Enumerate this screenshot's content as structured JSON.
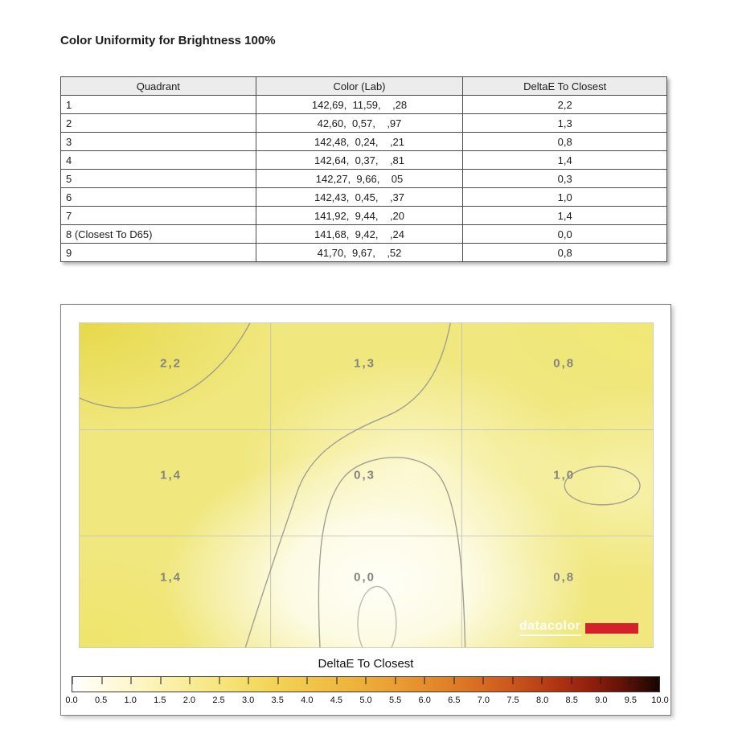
{
  "page": {
    "title": "Color Uniformity for Brightness 100%"
  },
  "table": {
    "headers": [
      "Quadrant",
      "Color (Lab)",
      "DeltaE To Closest"
    ],
    "rows": [
      {
        "quadrant": "1",
        "color_lab": "142,69,  11,59,    ,28",
        "delta_e": "2,2"
      },
      {
        "quadrant": "2",
        "color_lab": "42,60,  0,57,    ,97",
        "delta_e": "1,3"
      },
      {
        "quadrant": "3",
        "color_lab": "142,48,  0,24,    ,21",
        "delta_e": "0,8"
      },
      {
        "quadrant": "4",
        "color_lab": "142,64,  0,37,    ,81",
        "delta_e": "1,4"
      },
      {
        "quadrant": "5",
        "color_lab": "142,27,  9,66,    05",
        "delta_e": "0,3"
      },
      {
        "quadrant": "6",
        "color_lab": "142,43,  0,45,    ,37",
        "delta_e": "1,0"
      },
      {
        "quadrant": "7",
        "color_lab": "141,92,  9,44,    ,20",
        "delta_e": "1,4"
      },
      {
        "quadrant": "8 (Closest To D65)",
        "color_lab": "141,68,  9,42,    ,24",
        "delta_e": "0,0"
      },
      {
        "quadrant": "9",
        "color_lab": "41,70,  9,67,    ,52",
        "delta_e": "0,8"
      }
    ]
  },
  "chart_data": {
    "type": "heatmap",
    "title": "DeltaE To Closest",
    "grid_rows": 3,
    "grid_cols": 3,
    "values": [
      [
        2.2,
        1.3,
        0.8
      ],
      [
        1.4,
        0.3,
        1.0
      ],
      [
        1.4,
        0.0,
        0.8
      ]
    ],
    "cell_labels": [
      [
        "2,2",
        "1,3",
        "0,8"
      ],
      [
        "1,4",
        "0,3",
        "1,0"
      ],
      [
        "1,4",
        "0,0",
        "0,8"
      ]
    ],
    "colorbar": {
      "label": "DeltaE To Closest",
      "min": 0,
      "max": 10,
      "tick_labels": [
        "0.0",
        "0.5",
        "1.0",
        "1.5",
        "2.0",
        "2.5",
        "3.0",
        "3.5",
        "4.0",
        "4.5",
        "5.0",
        "5.5",
        "6.0",
        "6.5",
        "7.0",
        "7.5",
        "8.0",
        "8.5",
        "9.0",
        "9.5",
        "10.0"
      ],
      "gradient": [
        "#ffffff 0%",
        "#fffbe4 5%",
        "#fcf5c0 12%",
        "#f9ec96 20%",
        "#f6e070 28%",
        "#f3d254 35%",
        "#f0c246 42%",
        "#edb03a 49%",
        "#e99b31 56%",
        "#e18429 63%",
        "#d66a21 70%",
        "#c54d1a 77%",
        "#ad3212 83%",
        "#8c1d0c 89%",
        "#5e1207 94%",
        "#2e0a04 98%",
        "#140502 100%"
      ]
    },
    "watermark": "datacolor",
    "colors": {
      "watermark_red": "#d3222a",
      "contour_line": "#98988c",
      "grid_line": "#c6c6b6"
    }
  }
}
